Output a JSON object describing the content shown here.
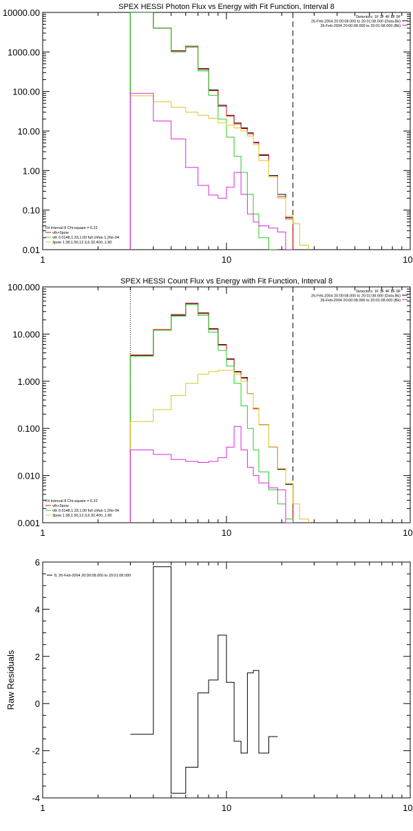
{
  "chart_data": [
    {
      "type": "line",
      "title": "SPEX HESSI Photon Flux vs Energy with Fit Function, Interval 8",
      "xscale": "log",
      "yscale": "log",
      "xlim": [
        1,
        100
      ],
      "ylim": [
        0.01,
        10000
      ],
      "xticklabels": [
        "1",
        "10",
        "100"
      ],
      "yticklabels": [
        "0.01",
        "0.10",
        "1.00",
        "10.00",
        "100.00",
        "1000.00",
        "10000.00"
      ],
      "header_lines": [
        "Detectors: 1F 3F 4F 8F 9F",
        "26-Feb-2004 20:00:08.000 to 20:01:08.000 (Data-Bk)",
        "26-Feb-2004 20:00:08.000 to 20:01:08.000 (Bk)"
      ],
      "legend_lines": [
        "Fit Interval 8   Chi-square = 6.22",
        "vth+3pow",
        "vth 0.0148,1.33,1.00  full chfan 1.26e-04",
        "3pow 1.38,1.50,12.3,6.32,400.,1.80"
      ],
      "vlines": [
        {
          "x": 3.0,
          "style": "solid",
          "color": "#22cc22"
        },
        {
          "x": 3.0,
          "style": "dotted",
          "color": "#e0c020"
        },
        {
          "x": 23.0,
          "style": "dashed",
          "color": "#000000"
        }
      ],
      "bin_edges": [
        3,
        4,
        5,
        6,
        7,
        8,
        9,
        10,
        11,
        12,
        13,
        14,
        15,
        17,
        19,
        21,
        23,
        25,
        28,
        31
      ],
      "series": [
        {
          "name": "Data-Bk",
          "color": "#000000",
          "step": true,
          "values": [
            10000,
            4000,
            1060,
            1400,
            380,
            110,
            45,
            25,
            16,
            12,
            9,
            5.2,
            2.5,
            0.75,
            0.25,
            0.065
          ]
        },
        {
          "color": "#dd1010",
          "step": true,
          "values": [
            10000,
            4000,
            1080,
            1380,
            360,
            105,
            42,
            24,
            15,
            11.5,
            8.5,
            5.0,
            2.4,
            0.7,
            0.22,
            0.06
          ]
        },
        {
          "color": "#22cc22",
          "step": true,
          "values": [
            10000,
            4000,
            1000,
            1300,
            330,
            80,
            20,
            7,
            2.3,
            0.9,
            0.25,
            0.08,
            0.02,
            0.004
          ]
        },
        {
          "color": "#e0c020",
          "step": true,
          "values": [
            78,
            55,
            40,
            30,
            25,
            21,
            16,
            14,
            12,
            10,
            7.5,
            4.5,
            1.8,
            0.7,
            0.2,
            0.07,
            0.045,
            0.013
          ]
        },
        {
          "color": "#dd22dd",
          "step": true,
          "values": [
            90,
            18,
            6.3,
            1.2,
            0.42,
            0.24,
            0.2,
            0.38,
            0.9,
            0.25,
            0.08,
            0.05,
            0.04,
            0.035,
            0.028,
            0.005
          ]
        }
      ]
    },
    {
      "type": "line",
      "title": "SPEX HESSI Count Flux vs Energy with Fit Function, Interval 8",
      "xscale": "log",
      "yscale": "log",
      "xlim": [
        1,
        100
      ],
      "ylim": [
        0.001,
        100
      ],
      "xticklabels": [
        "1",
        "10",
        "100"
      ],
      "yticklabels": [
        "0.001",
        "0.010",
        "0.100",
        "1.000",
        "10.000",
        "100.000"
      ],
      "header_lines": [
        "Detectors: 1F 3F 4F 8F 9F",
        "26-Feb-2004 20:00:08.000 to 20:01:08.000 (Data-Bk)",
        "26-Feb-2004 20:00:08.000 to 20:01:08.000 (Bk)"
      ],
      "legend_lines": [
        "Fit Interval 8   Chi-square = 6.22",
        "vth+3pow",
        "vth 0.0148,1.33,1.00  full chfan 1.26e-04",
        "3pow 1.38,1.50,12.3,6.32,400.,1.80"
      ],
      "vlines": [
        {
          "x": 3.0,
          "style": "dotted",
          "color": "#000000"
        },
        {
          "x": 23.0,
          "style": "dashed",
          "color": "#000000"
        }
      ],
      "bin_edges": [
        3,
        4,
        5,
        6,
        7,
        8,
        9,
        10,
        11,
        12,
        13,
        14,
        15,
        17,
        19,
        21,
        23,
        25,
        28,
        31
      ],
      "series": [
        {
          "name": "Data-Bk",
          "color": "#000000",
          "step": true,
          "values": [
            3.5,
            12,
            25,
            45,
            28,
            13,
            6,
            3.0,
            1.6,
            1.2,
            0.55,
            0.27,
            0.12,
            0.04,
            0.0135,
            0.0065
          ]
        },
        {
          "color": "#dd1010",
          "step": true,
          "values": [
            3.6,
            12.5,
            26,
            44,
            27,
            12.5,
            5.8,
            2.9,
            1.55,
            1.15,
            0.55,
            0.26,
            0.12,
            0.04,
            0.014,
            0.0068
          ]
        },
        {
          "color": "#22cc22",
          "step": true,
          "values": [
            3.4,
            12,
            24,
            42,
            25,
            11,
            4.5,
            2.1,
            0.9,
            0.3,
            0.1,
            0.035,
            0.012,
            0.005,
            0.0025,
            0.0012
          ]
        },
        {
          "color": "#e0c020",
          "step": true,
          "values": [
            0.14,
            0.25,
            0.5,
            0.9,
            1.4,
            1.6,
            1.7,
            1.7,
            1.4,
            1.0,
            0.55,
            0.27,
            0.12,
            0.04,
            0.014,
            0.0068,
            0.0025,
            0.0012
          ]
        },
        {
          "color": "#dd22dd",
          "step": true,
          "values": [
            0.035,
            0.028,
            0.022,
            0.02,
            0.019,
            0.02,
            0.024,
            0.04,
            0.11,
            0.035,
            0.015,
            0.01,
            0.007,
            0.0055,
            0.005,
            0.0008
          ]
        }
      ]
    },
    {
      "type": "line",
      "title": "",
      "xscale": "log",
      "yscale": "linear",
      "xlim": [
        1,
        100
      ],
      "ylim": [
        -4,
        6
      ],
      "xticklabels": [
        "1",
        "10",
        "100"
      ],
      "yticklabels": [
        "-4",
        "-2",
        "0",
        "2",
        "4",
        "6"
      ],
      "ylabel": "Raw Residuals",
      "legend_lines": [
        "8, 26-Feb-2004 20:00:08.000 to 20:01:08.000"
      ],
      "bin_edges": [
        3,
        4,
        5,
        6,
        7,
        8,
        9,
        10,
        11,
        12,
        13,
        14,
        15,
        17,
        19,
        21,
        23
      ],
      "series": [
        {
          "color": "#000000",
          "step": true,
          "values": [
            -1.3,
            5.8,
            -3.8,
            -2.7,
            0.45,
            1.0,
            2.9,
            0.9,
            -1.6,
            -2.1,
            1.3,
            1.4,
            -2.1,
            -1.4
          ]
        }
      ]
    }
  ]
}
